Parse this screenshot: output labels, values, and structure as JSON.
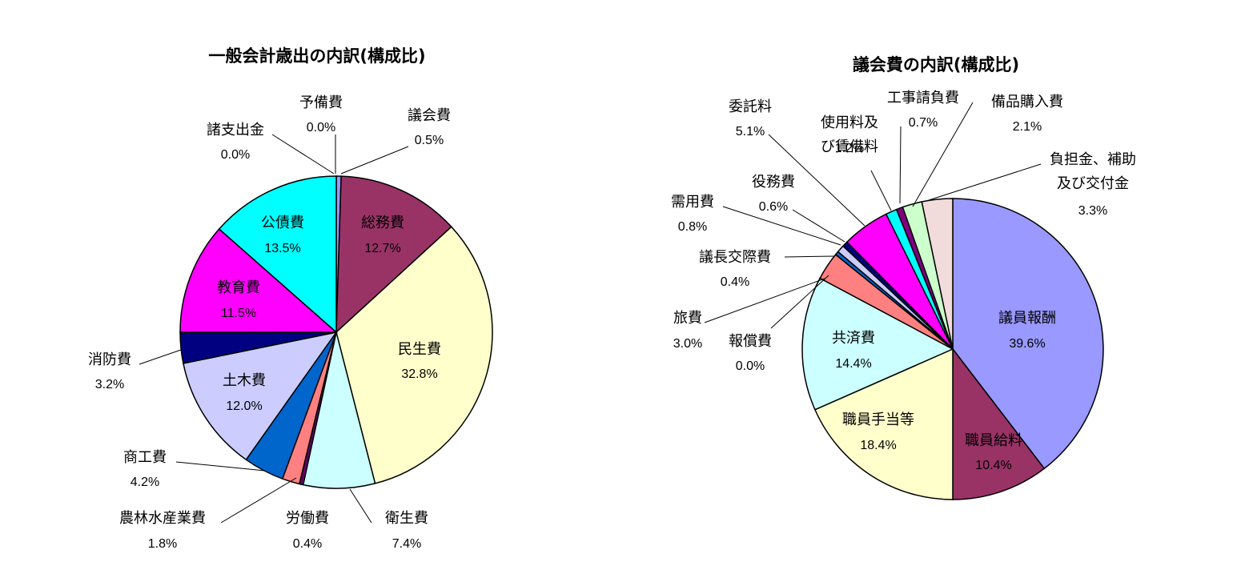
{
  "chart_data": [
    {
      "type": "pie",
      "title": "一般会計歳出の内訳(構成比)",
      "slices": [
        {
          "name": "議会費",
          "value": 0.5,
          "label_value": "0.5%",
          "color": "#9999ff",
          "label_color": "#ff0000"
        },
        {
          "name": "総務費",
          "value": 12.7,
          "label_value": "12.7%",
          "color": "#993366",
          "label_color": "#ffffff"
        },
        {
          "name": "民生費",
          "value": 32.8,
          "label_value": "32.8%",
          "color": "#ffffcc",
          "label_color": "#000000"
        },
        {
          "name": "衛生費",
          "value": 7.4,
          "label_value": "7.4%",
          "color": "#ccffff",
          "label_color": "#000000"
        },
        {
          "name": "労働費",
          "value": 0.4,
          "label_value": "0.4%",
          "color": "#660066",
          "label_color": "#000000"
        },
        {
          "name": "農林水産業費",
          "value": 1.8,
          "label_value": "1.8%",
          "color": "#ff8080",
          "label_color": "#000000"
        },
        {
          "name": "商工費",
          "value": 4.2,
          "label_value": "4.2%",
          "color": "#0066cc",
          "label_color": "#000000"
        },
        {
          "name": "土木費",
          "value": 12.0,
          "label_value": "12.0%",
          "color": "#ccccff",
          "label_color": "#000000"
        },
        {
          "name": "消防費",
          "value": 3.2,
          "label_value": "3.2%",
          "color": "#000080",
          "label_color": "#000000"
        },
        {
          "name": "教育費",
          "value": 11.5,
          "label_value": "11.5%",
          "color": "#ff00ff",
          "label_color": "#ffffff"
        },
        {
          "name": "公債費",
          "value": 13.5,
          "label_value": "13.5%",
          "color": "#00ffff",
          "label_color": "#000000"
        },
        {
          "name": "諸支出金",
          "value": 0.0,
          "label_value": "0.0%",
          "color": "#ffff00",
          "label_color": "#000000"
        },
        {
          "name": "予備費",
          "value": 0.0,
          "label_value": "0.0%",
          "color": "#00ff00",
          "label_color": "#000000"
        }
      ]
    },
    {
      "type": "pie",
      "title": "議会費の内訳(構成比)",
      "slices": [
        {
          "name": "議員報酬",
          "value": 39.6,
          "label_value": "39.6%",
          "color": "#9999ff",
          "label_color": "#000000"
        },
        {
          "name": "職員給料",
          "value": 10.4,
          "label_value": "10.4%",
          "color": "#993366",
          "label_color": "#ffffff"
        },
        {
          "name": "職員手当等",
          "value": 18.4,
          "label_value": "18.4%",
          "color": "#ffffcc",
          "label_color": "#000000"
        },
        {
          "name": "共済費",
          "value": 14.4,
          "label_value": "14.4%",
          "color": "#ccffff",
          "label_color": "#000000"
        },
        {
          "name": "報償費",
          "value": 0.0,
          "label_value": "0.0%",
          "color": "#660066",
          "label_color": "#000000"
        },
        {
          "name": "旅費",
          "value": 3.0,
          "label_value": "3.0%",
          "color": "#ff8080",
          "label_color": "#000000"
        },
        {
          "name": "議長交際費",
          "value": 0.4,
          "label_value": "0.4%",
          "color": "#0066cc",
          "label_color": "#000000"
        },
        {
          "name": "需用費",
          "value": 0.8,
          "label_value": "0.8%",
          "color": "#ccccff",
          "label_color": "#000000"
        },
        {
          "name": "役務費",
          "value": 0.6,
          "label_value": "0.6%",
          "color": "#000080",
          "label_color": "#000000"
        },
        {
          "name": "委託料",
          "value": 5.1,
          "label_value": "5.1%",
          "color": "#ff00ff",
          "label_color": "#000000"
        },
        {
          "name": "使用料及び賃借料",
          "value": 1.2,
          "label_value": "1.2%",
          "color": "#00ffff",
          "label_color": "#000000"
        },
        {
          "name": "工事請負費",
          "value": 0.7,
          "label_value": "0.7%",
          "color": "#800080",
          "label_color": "#000000"
        },
        {
          "name": "備品購入費",
          "value": 2.1,
          "label_value": "2.1%",
          "color": "#ccffcc",
          "label_color": "#000000"
        },
        {
          "name": "負担金、補助及び交付金",
          "value": 3.3,
          "label_value": "3.3%",
          "color": "#f2dcdb",
          "label_color": "#000000"
        }
      ]
    }
  ]
}
